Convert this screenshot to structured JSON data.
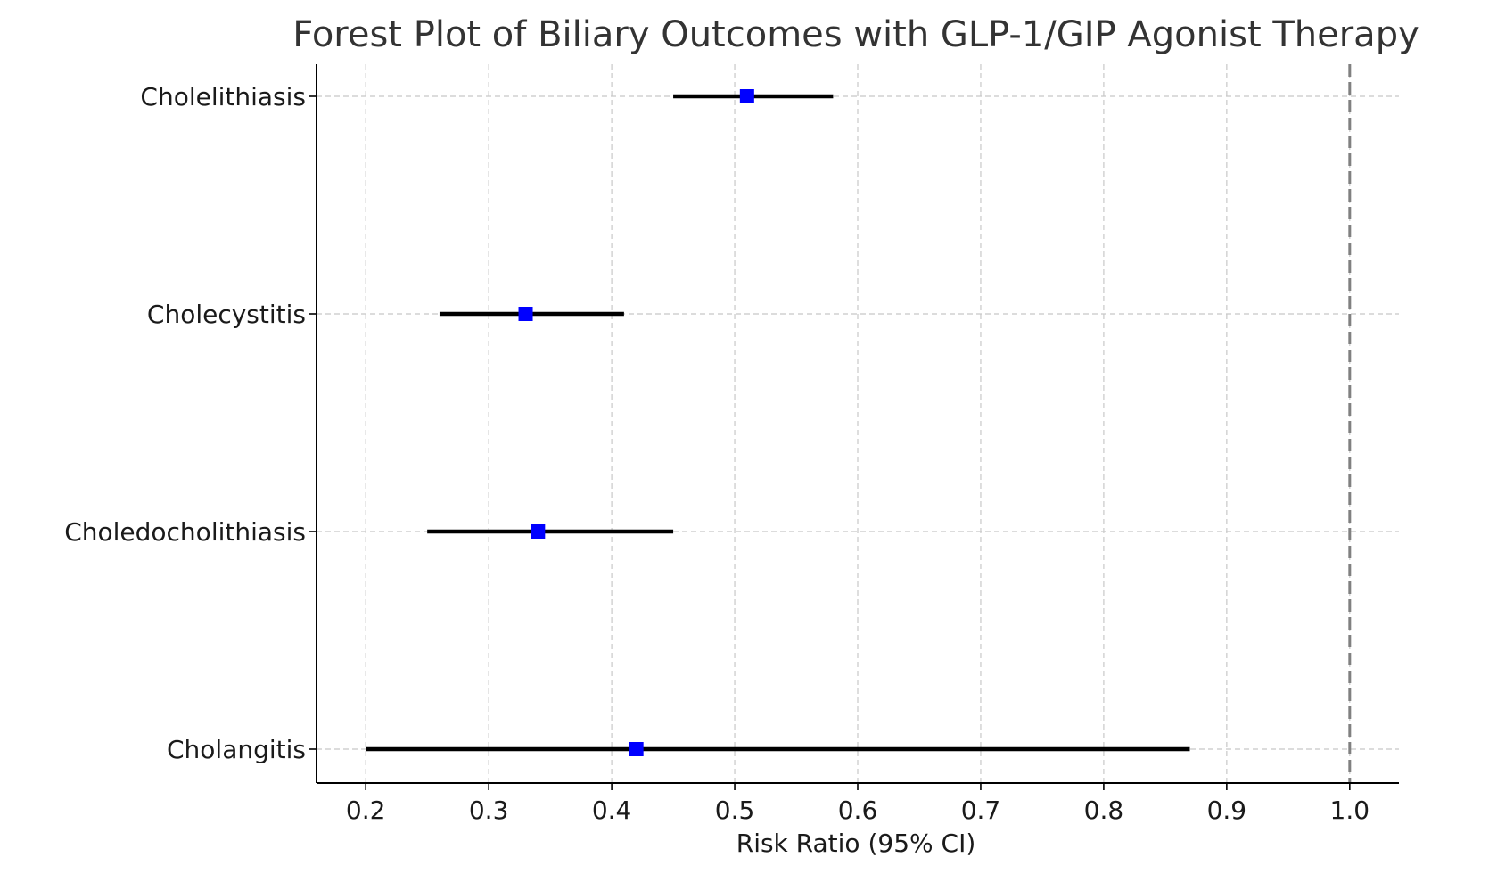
{
  "chart_data": {
    "type": "forest",
    "title": "Forest Plot of Biliary Outcomes with GLP-1/GIP Agonist Therapy",
    "xlabel": "Risk Ratio (95% CI)",
    "ylabel": "",
    "xlim": [
      0.16,
      1.04
    ],
    "xticks": [
      0.2,
      0.3,
      0.4,
      0.5,
      0.6,
      0.7,
      0.8,
      0.9,
      1.0
    ],
    "xtick_labels": [
      "0.2",
      "0.3",
      "0.4",
      "0.5",
      "0.6",
      "0.7",
      "0.8",
      "0.9",
      "1.0"
    ],
    "reference_line": 1.0,
    "grid": true,
    "marker_color": "#0000ff",
    "ci_color": "#000000",
    "reference_color": "#808080",
    "outcomes": [
      {
        "label": "Cholelithiasis",
        "estimate": 0.51,
        "lower": 0.45,
        "upper": 0.58
      },
      {
        "label": "Cholecystitis",
        "estimate": 0.33,
        "lower": 0.26,
        "upper": 0.41
      },
      {
        "label": "Choledocholithiasis",
        "estimate": 0.34,
        "lower": 0.25,
        "upper": 0.45
      },
      {
        "label": "Cholangitis",
        "estimate": 0.42,
        "lower": 0.2,
        "upper": 0.87
      }
    ]
  }
}
